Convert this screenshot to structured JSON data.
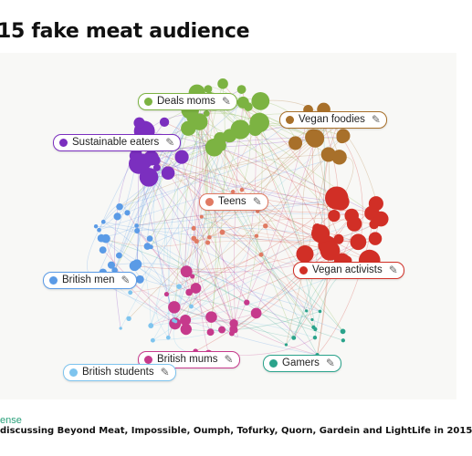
{
  "title": "15 fake meat audience",
  "source_name": "ense",
  "caption": "discussing Beyond Meat, Impossible, Oumph, Tofurky, Quorn, Gardein and LightLife in 2015",
  "edit_icon": "pencil-icon",
  "clusters": [
    {
      "id": "deals-moms",
      "label": "Deals moms",
      "color": "#7cb342"
    },
    {
      "id": "vegan-foodies",
      "label": "Vegan foodies",
      "color": "#a8702a"
    },
    {
      "id": "sustainable-eaters",
      "label": "Sustainable eaters",
      "color": "#7b2fbf"
    },
    {
      "id": "teens",
      "label": "Teens",
      "color": "#e07a63"
    },
    {
      "id": "vegan-activists",
      "label": "Vegan activists",
      "color": "#d12f26"
    },
    {
      "id": "british-men",
      "label": "British men",
      "color": "#5b9be6"
    },
    {
      "id": "british-mums",
      "label": "British mums",
      "color": "#c63a8c"
    },
    {
      "id": "gamers",
      "label": "Gamers",
      "color": "#2aa38b"
    },
    {
      "id": "british-students",
      "label": "British students",
      "color": "#7ec4ee"
    }
  ]
}
